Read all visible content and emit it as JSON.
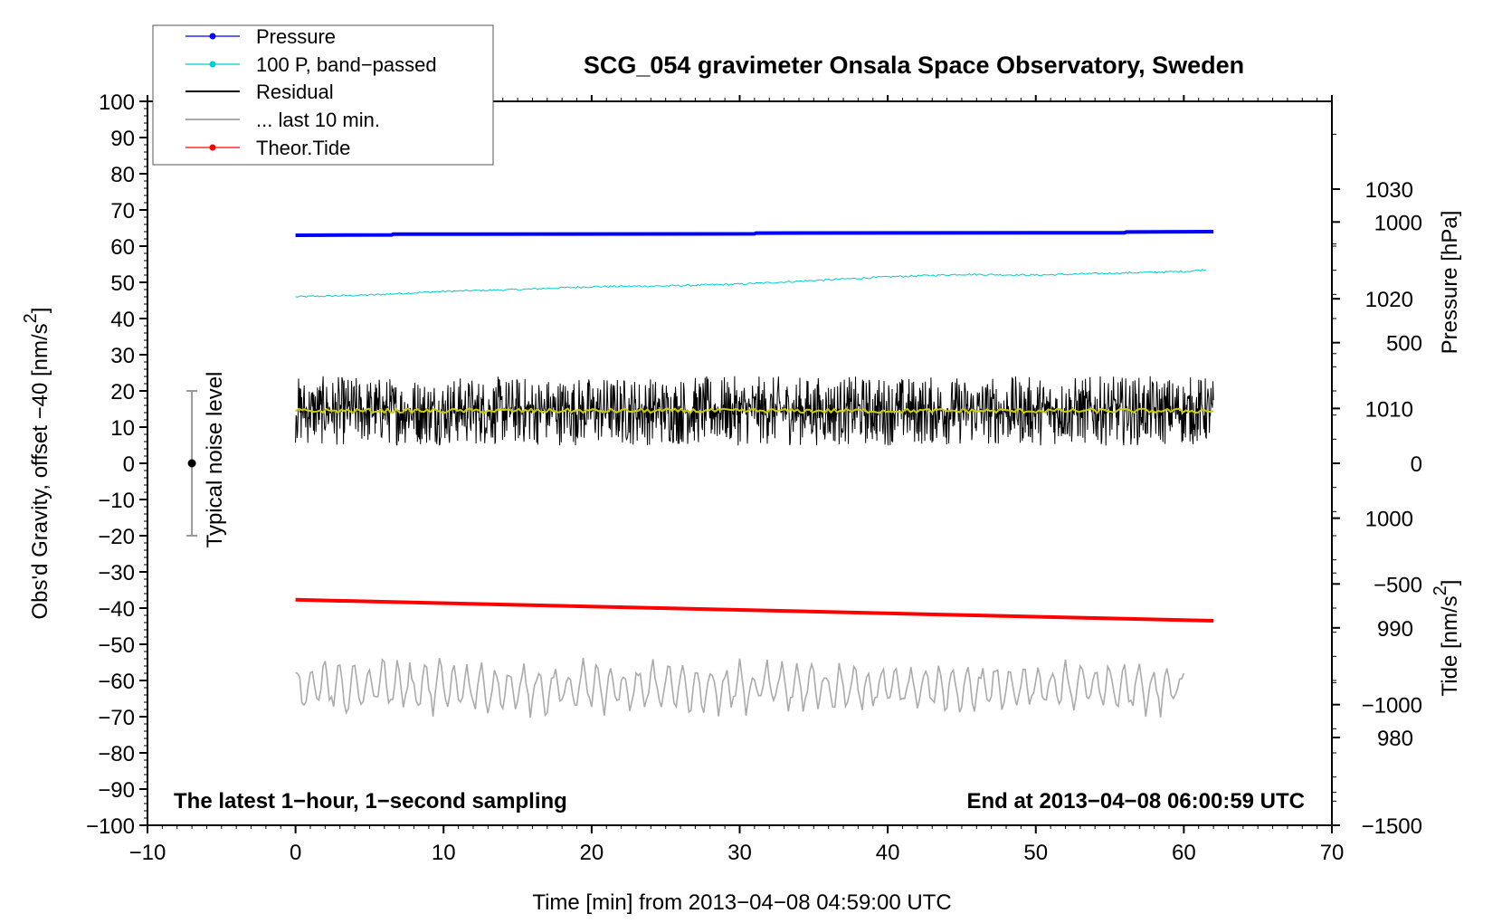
{
  "chart_data": {
    "type": "line",
    "title": "SCG_054 gravimeter Onsala Space Observatory, Sweden",
    "xlabel": "Time [min] from 2013−04−08 04:59:00 UTC",
    "ylabel_left": "Obs'd Gravity, offset −40 [nm/s",
    "ylabel_left_sup": "2",
    "ylabel_left_end": "]",
    "ylabel_right_top": "Pressure [hPa]",
    "ylabel_right_bottom": "Tide [nm/s",
    "ylabel_right_bottom_sup": "2",
    "ylabel_right_bottom_end": "]",
    "note_left": "The latest 1−hour, 1−second sampling",
    "note_right": "End at 2013−04−08 06:00:59 UTC",
    "noise_label": "Typical noise level",
    "xlim": [
      -10,
      70
    ],
    "ylim": [
      -100,
      100
    ],
    "pressure_ylim": [
      972,
      1038
    ],
    "tide_ylim": [
      -1500,
      1500
    ],
    "x_ticks": [
      "−10",
      "0",
      "10",
      "20",
      "30",
      "40",
      "50",
      "60",
      "70"
    ],
    "y_ticks": [
      "100",
      "90",
      "80",
      "70",
      "60",
      "50",
      "40",
      "30",
      "20",
      "10",
      "0",
      "−10",
      "−20",
      "−30",
      "−40",
      "−50",
      "−60",
      "−70",
      "−80",
      "−90",
      "−100"
    ],
    "pressure_ticks": [
      "1030",
      "1020",
      "1010",
      "1000",
      "990",
      "980"
    ],
    "tide_ticks": [
      "1000",
      "500",
      "0",
      "−500",
      "−1000",
      "−1500"
    ],
    "legend_position": "top-left",
    "noise_bar": {
      "x": -7,
      "center": 0,
      "low": -20,
      "high": 20
    },
    "series": [
      {
        "name": "Pressure",
        "color": "#0000ff",
        "x": [
          0,
          6.5,
          6.6,
          31,
          31.1,
          56,
          56.1,
          62
        ],
        "y": [
          63.0,
          63.1,
          63.3,
          63.4,
          63.6,
          63.7,
          63.9,
          64.0
        ]
      },
      {
        "name": "100 P, band−passed",
        "color": "#00cccc",
        "x": [
          0,
          5,
          10,
          15,
          20,
          25,
          30,
          35,
          40,
          45,
          50,
          55,
          60,
          61.5
        ],
        "y": [
          46.0,
          46.5,
          47.5,
          48.0,
          48.8,
          49.0,
          49.5,
          50.5,
          51.5,
          52.2,
          52.0,
          52.5,
          53.0,
          53.5
        ]
      },
      {
        "name": "Residual",
        "color": "#000000",
        "x": [
          0,
          62
        ],
        "y": [
          14.5,
          14.5
        ],
        "mean": 14.5,
        "spread": 6
      },
      {
        "name": "... last 10 min.",
        "color": "#aaaaaa",
        "x": [
          0,
          60
        ],
        "y": [
          -62,
          -62
        ],
        "mean": -62,
        "spread": 6
      },
      {
        "name": "Theor.Tide",
        "color": "#ff0000",
        "x": [
          0,
          62
        ],
        "y": [
          -37.7,
          -43.5
        ]
      }
    ]
  },
  "colors": {
    "smoothed_residual": "#cccc00",
    "legend_border": "#555555"
  }
}
